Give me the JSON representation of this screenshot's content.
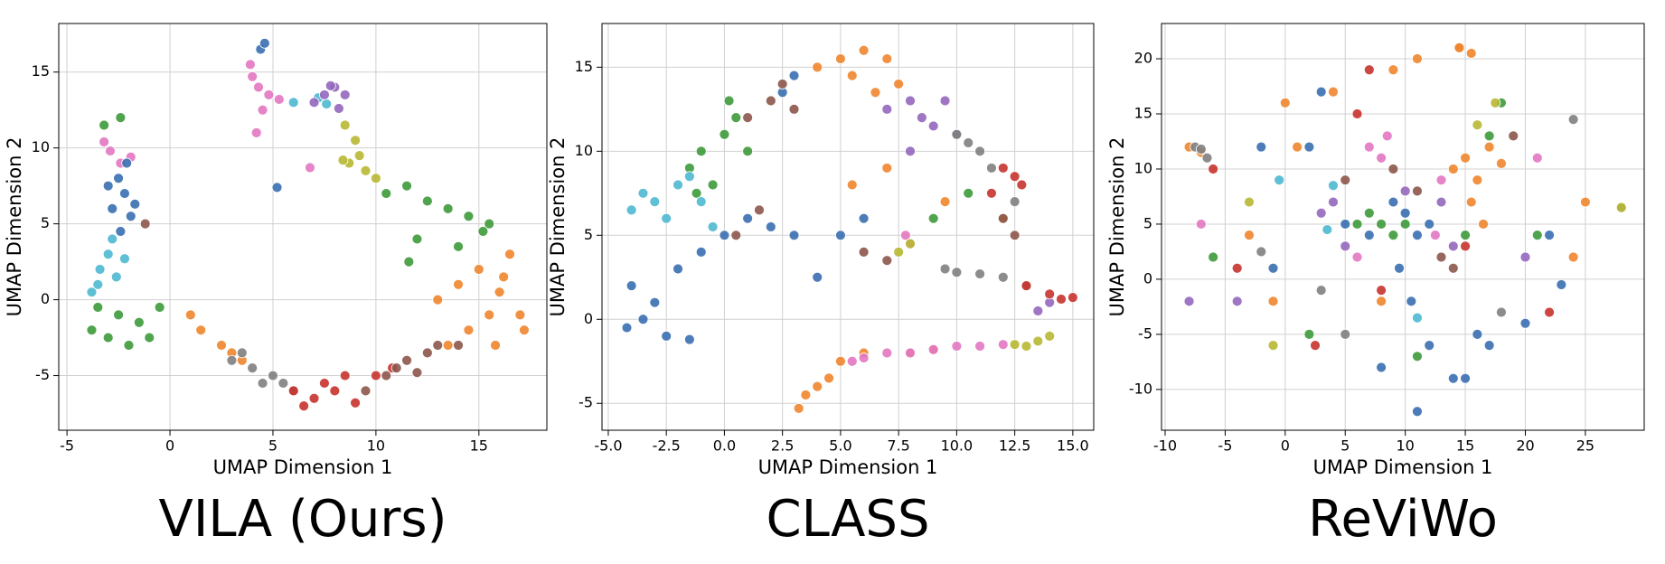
{
  "chart_data": [
    {
      "type": "scatter",
      "title": "VILA (Ours)",
      "x_label": "UMAP Dimension 1",
      "y_label": "UMAP Dimension 2",
      "xlim": [
        -5.4,
        18.3
      ],
      "ylim": [
        -8.6,
        18.2
      ],
      "xticks": [
        -5,
        0,
        5,
        10,
        15
      ],
      "yticks": [
        -5,
        0,
        5,
        10,
        15
      ],
      "grid": true,
      "series": [
        {
          "color": "#e377c2",
          "x": [
            4,
            4.3,
            4.8,
            5.3,
            3.9,
            4.5,
            -2.9,
            -2.4,
            -3.2,
            -1.9,
            4.2,
            6.8
          ],
          "y": [
            14.7,
            14,
            13.5,
            13.2,
            15.5,
            12.5,
            9.8,
            9,
            10.4,
            9.4,
            11,
            8.7
          ]
        },
        {
          "color": "#3a6fb0",
          "x": [
            -2.5,
            -2.2,
            -2.8,
            -1.9,
            -2.4,
            -2.1,
            -3,
            -1.7,
            4.4,
            4.6,
            5.2
          ],
          "y": [
            8,
            7,
            6,
            5.5,
            4.5,
            9,
            7.5,
            6.3,
            16.5,
            16.9,
            7.4
          ]
        },
        {
          "color": "#4db8d0",
          "x": [
            -3,
            -3.4,
            -2.6,
            -2.2,
            -3.8,
            -2.8,
            6,
            7.2,
            7.6,
            -3.5
          ],
          "y": [
            3,
            2,
            1.5,
            2.7,
            0.5,
            4,
            13,
            13.3,
            12.9,
            1
          ]
        },
        {
          "color": "#3d9a3a",
          "x": [
            -3.5,
            -2.5,
            -1.5,
            -0.5,
            -3.8,
            -2,
            -1,
            -3,
            -3.2,
            -2.4,
            10.5,
            11.5,
            12.5,
            13.5,
            14.5,
            15.5,
            12,
            14,
            11.6,
            15.2
          ],
          "y": [
            -0.5,
            -1,
            -1.5,
            -0.5,
            -2,
            -3,
            -2.5,
            -2.5,
            11.5,
            12,
            7,
            7.5,
            6.5,
            6,
            5.5,
            5,
            4,
            3.5,
            2.5,
            4.5
          ]
        },
        {
          "color": "#b8b833",
          "x": [
            8.5,
            9,
            9.2,
            8.7,
            9.5,
            10,
            8.4
          ],
          "y": [
            11.5,
            10.5,
            9.5,
            9,
            8.5,
            8,
            9.2
          ]
        },
        {
          "color": "#9467bd",
          "x": [
            7,
            7.5,
            8,
            8.5,
            8.2,
            7.8
          ],
          "y": [
            13,
            13.5,
            14,
            13.5,
            12.6,
            14.1
          ]
        },
        {
          "color": "#f0852d",
          "x": [
            1,
            1.5,
            2.5,
            3,
            3.5,
            13,
            14,
            15,
            15.5,
            16,
            16.5,
            17,
            14.5,
            15.8,
            16.2,
            17.2,
            13.5
          ],
          "y": [
            -1,
            -2,
            -3,
            -3.5,
            -4,
            0,
            1,
            2,
            -1,
            0.5,
            3,
            -1,
            -2,
            -3,
            1.5,
            -2,
            -3
          ]
        },
        {
          "color": "#7f7f7f",
          "x": [
            3,
            4,
            5,
            5.5,
            6,
            4.5,
            3.5
          ],
          "y": [
            -4,
            -4.5,
            -5,
            -5.5,
            -6,
            -5.5,
            -3.5
          ]
        },
        {
          "color": "#c8332e",
          "x": [
            6,
            6.5,
            7,
            7.5,
            8,
            8.5,
            9,
            10,
            10.8
          ],
          "y": [
            -6,
            -7,
            -6.5,
            -5.5,
            -6,
            -5,
            -6.8,
            -5,
            -4.5
          ]
        },
        {
          "color": "#8c564b",
          "x": [
            9.5,
            10.5,
            11,
            11.5,
            12.5,
            13,
            14,
            -1.2,
            12
          ],
          "y": [
            -6,
            -5,
            -4.5,
            -4,
            -3.5,
            -3,
            -3,
            5,
            -4.8
          ]
        }
      ]
    },
    {
      "type": "scatter",
      "title": "CLASS",
      "x_label": "UMAP Dimension 1",
      "y_label": "UMAP Dimension 2",
      "xlim": [
        -5.27,
        15.9
      ],
      "ylim": [
        -6.6,
        17.6
      ],
      "xticks": [
        {
          "value": -5,
          "label": "-5.0"
        },
        -2.5,
        {
          "value": 0,
          "label": "0.0"
        },
        2.5,
        {
          "value": 5,
          "label": "5.0"
        },
        7.5,
        {
          "value": 10,
          "label": "10.0"
        },
        12.5,
        {
          "value": 15,
          "label": "15.0"
        }
      ],
      "yticks": [
        -5,
        0,
        5,
        10,
        15
      ],
      "grid": true,
      "series": [
        {
          "color": "#f0852d",
          "x": [
            4,
            5,
            6,
            7,
            5.5,
            6.5,
            7.5,
            3.5,
            4.5,
            5,
            6,
            8,
            9,
            3.2,
            4,
            5.5,
            7,
            9.5,
            12
          ],
          "y": [
            15,
            15.5,
            16,
            15.5,
            14.5,
            13.5,
            14,
            -4.5,
            -3.5,
            -2.5,
            -2,
            -2,
            -1.8,
            -5.3,
            -4,
            8,
            9,
            7,
            6
          ]
        },
        {
          "color": "#3a6fb0",
          "x": [
            -4,
            -3,
            -2,
            -1,
            -4.2,
            -3.5,
            -2.5,
            -1.5,
            0,
            1,
            2,
            3,
            4,
            5,
            6,
            3,
            2.5
          ],
          "y": [
            2,
            1,
            3,
            4,
            -0.5,
            0,
            -1,
            -1.2,
            5,
            6,
            5.5,
            5,
            2.5,
            5,
            6,
            14.5,
            13.5
          ]
        },
        {
          "color": "#3d9a3a",
          "x": [
            -1.5,
            -1,
            0,
            0.5,
            1,
            -0.5,
            0.2,
            -1.2,
            9,
            10.5
          ],
          "y": [
            9,
            10,
            11,
            12,
            10,
            8,
            13,
            7.5,
            6,
            7.5
          ]
        },
        {
          "color": "#4db8d0",
          "x": [
            -4,
            -3,
            -2,
            -1.5,
            -1,
            -2.5,
            -3.5,
            -0.5
          ],
          "y": [
            6.5,
            7,
            8,
            8.5,
            7,
            6,
            7.5,
            5.5
          ]
        },
        {
          "color": "#8c564b",
          "x": [
            1,
            2,
            2.5,
            3,
            0.5,
            1.5,
            6,
            7,
            12,
            12.5
          ],
          "y": [
            12,
            13,
            14,
            12.5,
            5,
            6.5,
            4,
            3.5,
            6,
            5
          ]
        },
        {
          "color": "#9467bd",
          "x": [
            7,
            8,
            8.5,
            9,
            9.5,
            10,
            13.5,
            14,
            8
          ],
          "y": [
            12.5,
            13,
            12,
            11.5,
            13,
            11,
            0.5,
            1,
            10
          ]
        },
        {
          "color": "#7f7f7f",
          "x": [
            10,
            10.5,
            11,
            11.5,
            9.5,
            10,
            11,
            12,
            13,
            12.5
          ],
          "y": [
            11,
            10.5,
            10,
            9,
            3,
            2.8,
            2.7,
            2.5,
            2,
            7
          ]
        },
        {
          "color": "#c8332e",
          "x": [
            12,
            12.5,
            12.8,
            11.5,
            13,
            14,
            14.5,
            15
          ],
          "y": [
            9,
            8.5,
            8,
            7.5,
            2,
            1.5,
            1.2,
            1.3
          ]
        },
        {
          "color": "#e377c2",
          "x": [
            5.5,
            6,
            7,
            8,
            9,
            10,
            11,
            12,
            8,
            7.8
          ],
          "y": [
            -2.5,
            -2.3,
            -2,
            -2,
            -1.8,
            -1.6,
            -1.6,
            -1.5,
            4.5,
            5
          ]
        },
        {
          "color": "#b8b833",
          "x": [
            12.5,
            13,
            13.5,
            14,
            8,
            7.5
          ],
          "y": [
            -1.5,
            -1.6,
            -1.3,
            -1,
            4.5,
            4
          ]
        }
      ]
    },
    {
      "type": "scatter",
      "title": "ReViWo",
      "x_label": "UMAP Dimension 1",
      "y_label": "UMAP Dimension 2",
      "xlim": [
        -10.3,
        29.9
      ],
      "ylim": [
        -13.7,
        23.2
      ],
      "xticks": [
        -10,
        -5,
        0,
        5,
        10,
        15,
        20,
        25
      ],
      "yticks": [
        -10,
        -5,
        0,
        5,
        10,
        15,
        20
      ],
      "grid": true,
      "series": [
        {
          "color": "#f0852d",
          "x": [
            14,
            15,
            16,
            17,
            18,
            15.5,
            16.5,
            14.5,
            4,
            -3,
            -1,
            -8,
            -7,
            0,
            1,
            25,
            24,
            9,
            8,
            11,
            14.5,
            15.5
          ],
          "y": [
            10,
            11,
            9,
            12,
            10.5,
            7,
            5,
            21,
            17,
            4,
            -2,
            12,
            11.5,
            16,
            12,
            7,
            2,
            19,
            -2,
            20,
            21,
            20.5
          ]
        },
        {
          "color": "#3a6fb0",
          "x": [
            2,
            5,
            7,
            9,
            10,
            11,
            12,
            9.5,
            10.5,
            3,
            -1,
            -2,
            14,
            16,
            17,
            20,
            22,
            23,
            8,
            11,
            12,
            15
          ],
          "y": [
            12,
            5,
            4,
            7,
            6,
            4,
            5,
            1,
            -2,
            17,
            1,
            12,
            -9,
            -5,
            -6,
            -4,
            4,
            -0.5,
            -8,
            -12,
            -6,
            -9
          ]
        },
        {
          "color": "#3d9a3a",
          "x": [
            6,
            7,
            8,
            9,
            10,
            17,
            18,
            -6,
            2,
            15,
            11,
            21
          ],
          "y": [
            5,
            6,
            5,
            4,
            5,
            13,
            16,
            2,
            -5,
            4,
            -7,
            4
          ]
        },
        {
          "color": "#9467bd",
          "x": [
            3,
            4,
            5,
            13,
            14,
            20,
            -8,
            -4,
            10
          ],
          "y": [
            6,
            7,
            3,
            7,
            3,
            2,
            -2,
            -2,
            8
          ]
        },
        {
          "color": "#e377c2",
          "x": [
            7,
            8,
            8.5,
            6,
            13,
            21,
            -7,
            12.5
          ],
          "y": [
            12,
            11,
            13,
            2,
            9,
            11,
            5,
            4
          ]
        },
        {
          "color": "#c8332e",
          "x": [
            7,
            6,
            15,
            22,
            8,
            -4,
            -6,
            2.5
          ],
          "y": [
            19,
            15,
            3,
            -3,
            -1,
            1,
            10,
            -6
          ]
        },
        {
          "color": "#7f7f7f",
          "x": [
            -7.5,
            -7,
            -6.5,
            24,
            28,
            3,
            5,
            18,
            -2
          ],
          "y": [
            12,
            11.8,
            11,
            14.5,
            6.5,
            -1,
            -5,
            -3,
            2.5
          ]
        },
        {
          "color": "#8c564b",
          "x": [
            5,
            9,
            11,
            13,
            14,
            19
          ],
          "y": [
            9,
            10,
            8,
            2,
            1,
            13
          ]
        },
        {
          "color": "#b8b833",
          "x": [
            -3,
            28,
            17.5,
            -1,
            16
          ],
          "y": [
            7,
            6.5,
            16,
            -6,
            14
          ]
        },
        {
          "color": "#4db8d0",
          "x": [
            4,
            11,
            -0.5,
            3.5
          ],
          "y": [
            8.5,
            -3.5,
            9,
            4.5
          ]
        }
      ]
    }
  ]
}
